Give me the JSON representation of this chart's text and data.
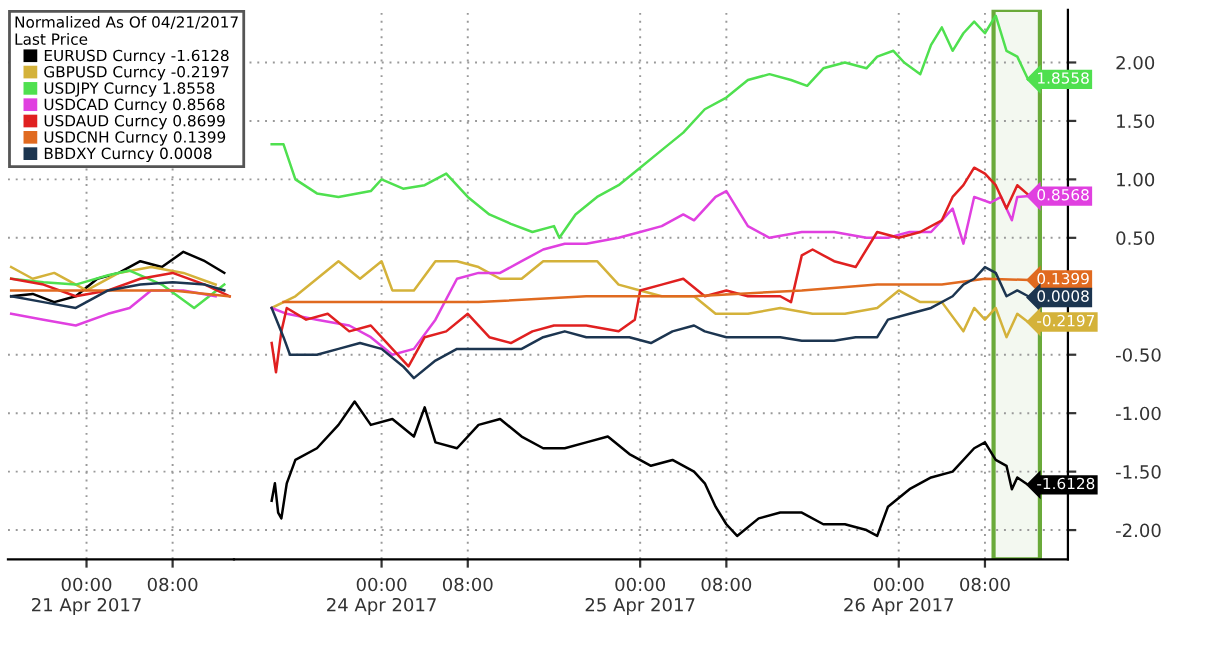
{
  "chart_data": [
    {
      "type": "line",
      "legend_title": "Normalized As Of 04/21/2017\nLast Price",
      "legend": "top left",
      "grid": true,
      "marker": "none",
      "line_style": "solid",
      "tick_labels": "x",
      "xlim": [
        "2017-04-20T16:42",
        "2017-04-21T13:42"
      ],
      "ylim": [
        -2.25,
        2.45
      ],
      "xticks": [
        {
          "value": "2017-04-21T00:00",
          "label": "00:00\n21 Apr 2017"
        },
        {
          "value": "2017-04-21T08:00",
          "label": "08:00"
        }
      ],
      "yticks": [
        {
          "value": 2,
          "label": null
        },
        {
          "value": 1.5,
          "label": null
        },
        {
          "value": 1,
          "label": null
        },
        {
          "value": 0.5,
          "label": null
        },
        {
          "value": -0.5,
          "label": null
        },
        {
          "value": -1,
          "label": null
        },
        {
          "value": -1.5,
          "label": null
        },
        {
          "value": -2,
          "label": null
        }
      ],
      "series": [
        {
          "name": "EURUSD Curncy -1.6128",
          "color": "#000000",
          "x": [
            "2017-04-20T17:00",
            "2017-04-20T19:00",
            "2017-04-20T21:00",
            "2017-04-20T23:00",
            "2017-04-21T01:00",
            "2017-04-21T03:00",
            "2017-04-21T05:00",
            "2017-04-21T07:00",
            "2017-04-21T09:00",
            "2017-04-21T11:00",
            "2017-04-21T12:48"
          ],
          "values": [
            0.0,
            0.02,
            -0.05,
            0.0,
            0.15,
            0.2,
            0.3,
            0.25,
            0.38,
            0.3,
            0.2
          ]
        },
        {
          "name": "GBPUSD Curncy -0.2197",
          "color": "#d4b23a",
          "x": [
            "2017-04-20T17:00",
            "2017-04-20T19:00",
            "2017-04-20T21:00",
            "2017-04-21T00:00",
            "2017-04-21T03:00",
            "2017-04-21T06:00",
            "2017-04-21T09:00",
            "2017-04-21T12:00"
          ],
          "values": [
            0.25,
            0.15,
            0.2,
            0.05,
            0.2,
            0.25,
            0.2,
            0.1
          ]
        },
        {
          "name": "USDJPY Curncy 1.8558",
          "color": "#4fe04f",
          "x": [
            "2017-04-20T17:00",
            "2017-04-20T20:00",
            "2017-04-20T23:00",
            "2017-04-21T02:00",
            "2017-04-21T04:00",
            "2017-04-21T07:00",
            "2017-04-21T10:00",
            "2017-04-21T12:48"
          ],
          "values": [
            0.15,
            0.12,
            0.1,
            0.18,
            0.22,
            0.1,
            -0.1,
            0.1
          ]
        },
        {
          "name": "USDCAD Curncy 0.8568",
          "color": "#e040e0",
          "x": [
            "2017-04-20T17:00",
            "2017-04-20T20:00",
            "2017-04-20T23:00",
            "2017-04-21T02:00",
            "2017-04-21T04:00",
            "2017-04-21T06:00",
            "2017-04-21T09:00",
            "2017-04-21T12:00"
          ],
          "values": [
            -0.15,
            -0.2,
            -0.25,
            -0.15,
            -0.1,
            0.05,
            0.05,
            0.0
          ]
        },
        {
          "name": "USDAUD Curncy 0.8699",
          "color": "#e02020",
          "x": [
            "2017-04-20T17:00",
            "2017-04-20T20:00",
            "2017-04-20T23:00",
            "2017-04-21T02:00",
            "2017-04-21T05:00",
            "2017-04-21T08:00",
            "2017-04-21T11:00",
            "2017-04-21T13:18"
          ],
          "values": [
            0.15,
            0.1,
            0.0,
            0.05,
            0.15,
            0.2,
            0.1,
            0.0
          ]
        },
        {
          "name": "USDCNH Curncy 0.1399",
          "color": "#e06a20",
          "x": [
            "2017-04-20T17:00",
            "2017-04-21T00:00",
            "2017-04-21T08:00",
            "2017-04-21T13:18"
          ],
          "values": [
            0.05,
            0.05,
            0.05,
            0.0
          ]
        },
        {
          "name": "BBDXY Curncy 0.0008",
          "color": "#1c3550",
          "x": [
            "2017-04-20T17:00",
            "2017-04-20T20:00",
            "2017-04-20T23:00",
            "2017-04-21T02:00",
            "2017-04-21T05:00",
            "2017-04-21T08:00",
            "2017-04-21T11:00",
            "2017-04-21T12:48"
          ],
          "values": [
            0.0,
            -0.05,
            -0.1,
            0.05,
            0.1,
            0.12,
            0.1,
            0.05
          ]
        }
      ]
    },
    {
      "type": "line",
      "grid": true,
      "marker": "none",
      "line_style": "solid",
      "xlim": [
        "2017-04-23T10:18",
        "2017-04-26T15:42"
      ],
      "ylim": [
        -2.25,
        2.45
      ],
      "xticks": [
        {
          "value": "2017-04-24T00:00",
          "label": "00:00\n24 Apr 2017"
        },
        {
          "value": "2017-04-24T08:00",
          "label": "08:00"
        },
        {
          "value": "2017-04-25T00:00",
          "label": "00:00\n25 Apr 2017"
        },
        {
          "value": "2017-04-25T08:00",
          "label": "08:00"
        },
        {
          "value": "2017-04-26T00:00",
          "label": "00:00\n26 Apr 2017"
        },
        {
          "value": "2017-04-26T08:00",
          "label": "08:00"
        }
      ],
      "yticks": [
        {
          "value": 2,
          "label": "2.00"
        },
        {
          "value": 1.5,
          "label": "1.50"
        },
        {
          "value": 1,
          "label": "1.00"
        },
        {
          "value": 0.5,
          "label": "0.50"
        },
        {
          "value": -0.5,
          "label": "-0.50"
        },
        {
          "value": -1,
          "label": "-1.00"
        },
        {
          "value": -1.5,
          "label": "-1.50"
        },
        {
          "value": -2,
          "label": "-2.00"
        }
      ],
      "bands": [
        {
          "axis": "x",
          "from": "2017-04-26T08:48",
          "to": "2017-04-26T13:06",
          "color": "#6aaa3a"
        }
      ],
      "series": [
        {
          "color": "#000000",
          "x": [
            "2017-04-23T13:48",
            "2017-04-23T14:06",
            "2017-04-23T14:24",
            "2017-04-23T14:42",
            "2017-04-23T15:12",
            "2017-04-23T16:00",
            "2017-04-23T18:00",
            "2017-04-23T20:00",
            "2017-04-23T21:30",
            "2017-04-23T23:00",
            "2017-04-24T01:00",
            "2017-04-24T03:00",
            "2017-04-24T04:00",
            "2017-04-24T05:00",
            "2017-04-24T07:00",
            "2017-04-24T09:00",
            "2017-04-24T11:00",
            "2017-04-24T13:00",
            "2017-04-24T15:00",
            "2017-04-24T17:00",
            "2017-04-24T19:00",
            "2017-04-24T21:00",
            "2017-04-24T23:00",
            "2017-04-25T01:00",
            "2017-04-25T03:00",
            "2017-04-25T05:00",
            "2017-04-25T06:00",
            "2017-04-25T07:00",
            "2017-04-25T08:00",
            "2017-04-25T09:00",
            "2017-04-25T11:00",
            "2017-04-25T13:00",
            "2017-04-25T15:00",
            "2017-04-25T17:00",
            "2017-04-25T19:00",
            "2017-04-25T21:00",
            "2017-04-25T22:00",
            "2017-04-25T23:00",
            "2017-04-26T01:00",
            "2017-04-26T03:00",
            "2017-04-26T05:00",
            "2017-04-26T07:00",
            "2017-04-26T08:00",
            "2017-04-26T09:00",
            "2017-04-26T10:00",
            "2017-04-26T10:30",
            "2017-04-26T11:00",
            "2017-04-26T12:00"
          ],
          "values": [
            -1.75,
            -1.6,
            -1.85,
            -1.9,
            -1.6,
            -1.4,
            -1.3,
            -1.1,
            -0.9,
            -1.1,
            -1.05,
            -1.2,
            -0.95,
            -1.25,
            -1.3,
            -1.1,
            -1.05,
            -1.2,
            -1.3,
            -1.3,
            -1.25,
            -1.2,
            -1.35,
            -1.45,
            -1.4,
            -1.5,
            -1.6,
            -1.8,
            -1.95,
            -2.05,
            -1.9,
            -1.85,
            -1.85,
            -1.95,
            -1.95,
            -2.0,
            -2.05,
            -1.8,
            -1.65,
            -1.55,
            -1.5,
            -1.3,
            -1.25,
            -1.4,
            -1.45,
            -1.65,
            -1.55,
            -1.6128
          ],
          "value_labels": [
            null,
            null,
            null,
            null,
            null,
            null,
            null,
            null,
            null,
            null,
            null,
            null,
            null,
            null,
            null,
            null,
            null,
            null,
            null,
            null,
            null,
            null,
            null,
            null,
            null,
            null,
            null,
            null,
            null,
            null,
            null,
            null,
            null,
            null,
            null,
            null,
            null,
            null,
            null,
            null,
            null,
            null,
            null,
            null,
            null,
            null,
            null,
            "-1.6128"
          ]
        },
        {
          "color": "#d4b23a",
          "x": [
            "2017-04-23T13:48",
            "2017-04-23T14:54",
            "2017-04-23T16:00",
            "2017-04-23T18:00",
            "2017-04-23T20:00",
            "2017-04-23T22:00",
            "2017-04-24T00:00",
            "2017-04-24T01:00",
            "2017-04-24T03:00",
            "2017-04-24T05:00",
            "2017-04-24T07:00",
            "2017-04-24T09:00",
            "2017-04-24T11:00",
            "2017-04-24T13:00",
            "2017-04-24T15:00",
            "2017-04-24T17:00",
            "2017-04-24T20:00",
            "2017-04-24T22:00",
            "2017-04-25T00:00",
            "2017-04-25T02:00",
            "2017-04-25T05:00",
            "2017-04-25T07:00",
            "2017-04-25T10:00",
            "2017-04-25T13:00",
            "2017-04-25T16:00",
            "2017-04-25T19:00",
            "2017-04-25T22:00",
            "2017-04-26T00:00",
            "2017-04-26T02:00",
            "2017-04-26T04:00",
            "2017-04-26T06:00",
            "2017-04-26T07:00",
            "2017-04-26T08:00",
            "2017-04-26T09:00",
            "2017-04-26T10:00",
            "2017-04-26T11:00",
            "2017-04-26T12:00"
          ],
          "values": [
            -0.1,
            -0.05,
            0.0,
            0.15,
            0.3,
            0.15,
            0.3,
            0.05,
            0.05,
            0.3,
            0.3,
            0.25,
            0.15,
            0.15,
            0.3,
            0.3,
            0.3,
            0.1,
            0.05,
            0.0,
            0.0,
            -0.15,
            -0.15,
            -0.1,
            -0.15,
            -0.15,
            -0.1,
            0.05,
            -0.05,
            -0.05,
            -0.3,
            -0.1,
            -0.2,
            -0.1,
            -0.35,
            -0.15,
            -0.2197
          ],
          "value_labels": [
            null,
            null,
            null,
            null,
            null,
            null,
            null,
            null,
            null,
            null,
            null,
            null,
            null,
            null,
            null,
            null,
            null,
            null,
            null,
            null,
            null,
            null,
            null,
            null,
            null,
            null,
            null,
            null,
            null,
            null,
            null,
            null,
            null,
            null,
            null,
            null,
            "-0.2197"
          ]
        },
        {
          "color": "#4fe04f",
          "x": [
            "2017-04-23T13:48",
            "2017-04-23T14:54",
            "2017-04-23T16:00",
            "2017-04-23T18:00",
            "2017-04-23T20:00",
            "2017-04-23T23:00",
            "2017-04-24T00:00",
            "2017-04-24T02:00",
            "2017-04-24T04:00",
            "2017-04-24T06:00",
            "2017-04-24T08:00",
            "2017-04-24T10:00",
            "2017-04-24T12:00",
            "2017-04-24T14:00",
            "2017-04-24T16:00",
            "2017-04-24T16:30",
            "2017-04-24T18:00",
            "2017-04-24T20:00",
            "2017-04-24T22:00",
            "2017-04-25T00:00",
            "2017-04-25T02:00",
            "2017-04-25T04:00",
            "2017-04-25T06:00",
            "2017-04-25T08:00",
            "2017-04-25T10:00",
            "2017-04-25T12:00",
            "2017-04-25T14:00",
            "2017-04-25T15:30",
            "2017-04-25T17:00",
            "2017-04-25T19:00",
            "2017-04-25T21:00",
            "2017-04-25T22:00",
            "2017-04-25T23:30",
            "2017-04-26T00:30",
            "2017-04-26T02:00",
            "2017-04-26T03:00",
            "2017-04-26T04:00",
            "2017-04-26T05:00",
            "2017-04-26T06:00",
            "2017-04-26T07:00",
            "2017-04-26T08:00",
            "2017-04-26T09:00",
            "2017-04-26T10:00",
            "2017-04-26T11:00",
            "2017-04-26T12:00"
          ],
          "values": [
            1.3,
            1.3,
            1.0,
            0.88,
            0.85,
            0.9,
            1.0,
            0.92,
            0.95,
            1.05,
            0.85,
            0.7,
            0.62,
            0.55,
            0.6,
            0.5,
            0.7,
            0.85,
            0.95,
            1.1,
            1.25,
            1.4,
            1.6,
            1.7,
            1.85,
            1.9,
            1.85,
            1.8,
            1.95,
            2.0,
            1.95,
            2.05,
            2.1,
            2.0,
            1.9,
            2.15,
            2.3,
            2.1,
            2.25,
            2.35,
            2.25,
            2.4,
            2.1,
            2.05,
            1.8558
          ],
          "value_labels": [
            null,
            null,
            null,
            null,
            null,
            null,
            null,
            null,
            null,
            null,
            null,
            null,
            null,
            null,
            null,
            null,
            null,
            null,
            null,
            null,
            null,
            null,
            null,
            null,
            null,
            null,
            null,
            null,
            null,
            null,
            null,
            null,
            null,
            null,
            null,
            null,
            null,
            null,
            null,
            null,
            null,
            null,
            null,
            null,
            "1.8558"
          ]
        },
        {
          "color": "#e040e0",
          "x": [
            "2017-04-23T13:48",
            "2017-04-23T15:12",
            "2017-04-23T18:00",
            "2017-04-23T21:00",
            "2017-04-23T23:00",
            "2017-04-24T01:00",
            "2017-04-24T03:00",
            "2017-04-24T05:00",
            "2017-04-24T07:00",
            "2017-04-24T09:00",
            "2017-04-24T11:00",
            "2017-04-24T13:00",
            "2017-04-24T15:00",
            "2017-04-24T17:00",
            "2017-04-24T19:00",
            "2017-04-24T22:00",
            "2017-04-25T00:00",
            "2017-04-25T02:00",
            "2017-04-25T04:00",
            "2017-04-25T05:00",
            "2017-04-25T07:00",
            "2017-04-25T08:00",
            "2017-04-25T09:00",
            "2017-04-25T10:00",
            "2017-04-25T12:00",
            "2017-04-25T15:00",
            "2017-04-25T18:00",
            "2017-04-25T21:00",
            "2017-04-25T23:00",
            "2017-04-26T01:00",
            "2017-04-26T03:00",
            "2017-04-26T04:00",
            "2017-04-26T05:00",
            "2017-04-26T06:00",
            "2017-04-26T07:00",
            "2017-04-26T08:30",
            "2017-04-26T09:30",
            "2017-04-26T10:30",
            "2017-04-26T11:00",
            "2017-04-26T12:00"
          ],
          "values": [
            -0.1,
            -0.15,
            -0.2,
            -0.25,
            -0.35,
            -0.5,
            -0.45,
            -0.2,
            0.15,
            0.2,
            0.2,
            0.3,
            0.4,
            0.45,
            0.45,
            0.5,
            0.55,
            0.6,
            0.7,
            0.65,
            0.85,
            0.9,
            0.75,
            0.6,
            0.5,
            0.55,
            0.55,
            0.5,
            0.5,
            0.55,
            0.55,
            0.65,
            0.75,
            0.45,
            0.85,
            0.8,
            0.85,
            0.65,
            0.85,
            0.8568
          ],
          "value_labels": [
            null,
            null,
            null,
            null,
            null,
            null,
            null,
            null,
            null,
            null,
            null,
            null,
            null,
            null,
            null,
            null,
            null,
            null,
            null,
            null,
            null,
            null,
            null,
            null,
            null,
            null,
            null,
            null,
            null,
            null,
            null,
            null,
            null,
            null,
            null,
            null,
            null,
            null,
            null,
            "0.8568"
          ]
        },
        {
          "color": "#e02020",
          "x": [
            "2017-04-23T13:48",
            "2017-04-23T14:12",
            "2017-04-23T14:42",
            "2017-04-23T15:12",
            "2017-04-23T17:00",
            "2017-04-23T19:00",
            "2017-04-23T21:00",
            "2017-04-23T23:00",
            "2017-04-24T01:00",
            "2017-04-24T02:30",
            "2017-04-24T04:00",
            "2017-04-24T06:00",
            "2017-04-24T08:00",
            "2017-04-24T10:00",
            "2017-04-24T12:00",
            "2017-04-24T14:00",
            "2017-04-24T16:00",
            "2017-04-24T19:00",
            "2017-04-24T22:00",
            "2017-04-24T23:30",
            "2017-04-25T00:00",
            "2017-04-25T02:00",
            "2017-04-25T04:00",
            "2017-04-25T06:00",
            "2017-04-25T08:00",
            "2017-04-25T10:00",
            "2017-04-25T13:00",
            "2017-04-25T14:00",
            "2017-04-25T15:00",
            "2017-04-25T16:00",
            "2017-04-25T18:00",
            "2017-04-25T20:00",
            "2017-04-25T22:00",
            "2017-04-26T00:00",
            "2017-04-26T02:00",
            "2017-04-26T04:00",
            "2017-04-26T05:00",
            "2017-04-26T06:00",
            "2017-04-26T07:00",
            "2017-04-26T08:00",
            "2017-04-26T09:00",
            "2017-04-26T10:00",
            "2017-04-26T11:00",
            "2017-04-26T12:00"
          ],
          "values": [
            -0.4,
            -0.65,
            -0.3,
            -0.1,
            -0.2,
            -0.15,
            -0.3,
            -0.25,
            -0.45,
            -0.6,
            -0.35,
            -0.3,
            -0.15,
            -0.35,
            -0.4,
            -0.3,
            -0.25,
            -0.25,
            -0.3,
            -0.2,
            0.05,
            0.1,
            0.15,
            0.0,
            0.05,
            0.0,
            0.0,
            -0.05,
            0.35,
            0.4,
            0.3,
            0.25,
            0.55,
            0.5,
            0.55,
            0.65,
            0.85,
            0.95,
            1.1,
            1.05,
            0.95,
            0.75,
            0.95,
            0.8699
          ]
        },
        {
          "color": "#e06a20",
          "x": [
            "2017-04-23T14:54",
            "2017-04-23T23:00",
            "2017-04-24T09:00",
            "2017-04-24T19:00",
            "2017-04-25T05:00",
            "2017-04-25T15:00",
            "2017-04-25T22:00",
            "2017-04-26T04:00",
            "2017-04-26T08:00",
            "2017-04-26T12:00"
          ],
          "values": [
            -0.05,
            -0.05,
            -0.05,
            0.0,
            0.0,
            0.05,
            0.1,
            0.1,
            0.15,
            0.1399
          ],
          "value_labels": [
            null,
            null,
            null,
            null,
            null,
            null,
            null,
            null,
            null,
            "0.1399"
          ]
        },
        {
          "color": "#1c3550",
          "x": [
            "2017-04-23T13:48",
            "2017-04-23T14:54",
            "2017-04-23T15:30",
            "2017-04-23T18:00",
            "2017-04-23T20:00",
            "2017-04-23T22:00",
            "2017-04-24T00:00",
            "2017-04-24T02:00",
            "2017-04-24T03:00",
            "2017-04-24T05:00",
            "2017-04-24T07:00",
            "2017-04-24T09:00",
            "2017-04-24T11:00",
            "2017-04-24T13:00",
            "2017-04-24T15:00",
            "2017-04-24T17:00",
            "2017-04-24T19:00",
            "2017-04-24T21:00",
            "2017-04-24T23:00",
            "2017-04-25T01:00",
            "2017-04-25T03:00",
            "2017-04-25T05:00",
            "2017-04-25T06:00",
            "2017-04-25T08:00",
            "2017-04-25T11:00",
            "2017-04-25T13:00",
            "2017-04-25T15:00",
            "2017-04-25T18:00",
            "2017-04-25T20:00",
            "2017-04-25T22:00",
            "2017-04-25T23:00",
            "2017-04-26T01:00",
            "2017-04-26T03:00",
            "2017-04-26T05:00",
            "2017-04-26T06:00",
            "2017-04-26T07:00",
            "2017-04-26T08:00",
            "2017-04-26T09:00",
            "2017-04-26T10:00",
            "2017-04-26T11:00",
            "2017-04-26T12:00"
          ],
          "values": [
            -0.1,
            -0.35,
            -0.5,
            -0.5,
            -0.45,
            -0.4,
            -0.45,
            -0.6,
            -0.7,
            -0.55,
            -0.45,
            -0.45,
            -0.45,
            -0.45,
            -0.35,
            -0.3,
            -0.35,
            -0.35,
            -0.35,
            -0.4,
            -0.3,
            -0.25,
            -0.3,
            -0.35,
            -0.35,
            -0.35,
            -0.38,
            -0.38,
            -0.35,
            -0.35,
            -0.2,
            -0.15,
            -0.1,
            0.0,
            0.1,
            0.15,
            0.25,
            0.2,
            0.0,
            0.05,
            0.0008
          ],
          "value_labels": [
            null,
            null,
            null,
            null,
            null,
            null,
            null,
            null,
            null,
            null,
            null,
            null,
            null,
            null,
            null,
            null,
            null,
            null,
            null,
            null,
            null,
            null,
            null,
            null,
            null,
            null,
            null,
            null,
            null,
            null,
            null,
            null,
            null,
            null,
            null,
            null,
            null,
            null,
            null,
            null,
            "0.0008"
          ]
        }
      ]
    }
  ]
}
